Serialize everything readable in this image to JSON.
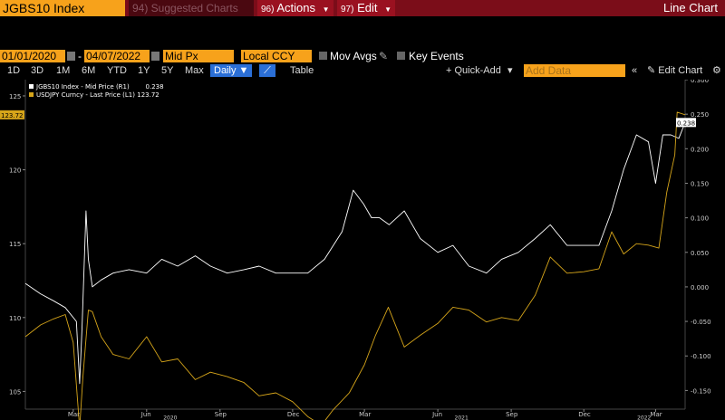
{
  "toolbar": {
    "ticker": "JGBS10 Index",
    "suggested": "94) Suggested Charts",
    "actions_num": "96)",
    "actions": "Actions",
    "edit_num": "97)",
    "edit": "Edit",
    "title": "Line Chart"
  },
  "range": {
    "start": "01/01/2020",
    "end": "04/07/2022",
    "field": "Mid Px",
    "currency": "Local CCY",
    "mov_avgs": "Mov Avgs",
    "key_events": "Key Events"
  },
  "periods": [
    "1D",
    "3D",
    "1M",
    "6M",
    "YTD",
    "1Y",
    "5Y",
    "Max"
  ],
  "controls": {
    "frequency": "Daily",
    "table": "Table",
    "quick_add": "+ Quick-Add",
    "add_data_placeholder": "Add Data",
    "edit_chart": "Edit Chart"
  },
  "colors": {
    "jgb": "#ffffff",
    "usdjpy": "#d6a51a",
    "orange": "#f7a21b",
    "header_red": "#7b0d19"
  },
  "chart_data": {
    "type": "line",
    "legend": [
      {
        "label": "JGBS10 Index - Mid Price (R1)",
        "value": "0.238"
      },
      {
        "label": "USDJPY Curncy - Last Price (L1)",
        "value": "123.72"
      }
    ],
    "last_values": {
      "left": "123.72",
      "right": "0.238"
    },
    "left_axis": {
      "ticks": [
        105,
        110,
        115,
        120,
        125
      ],
      "range": [
        103.8,
        126.1
      ]
    },
    "right_axis": {
      "ticks": [
        -0.15,
        -0.1,
        -0.05,
        0.0,
        0.05,
        0.1,
        0.15,
        0.2,
        0.25,
        0.3
      ],
      "tick_labels": [
        "-0.150",
        "-0.100",
        "-0.050",
        "0.000",
        "0.050",
        "0.100",
        "0.150",
        "0.200",
        "0.250",
        "0.300"
      ],
      "range": [
        -0.177,
        0.3
      ]
    },
    "x_ticks": [
      "Mar",
      "Jun",
      "Sep",
      "Dec",
      "Mar",
      "Jun",
      "Sep",
      "Dec",
      "Mar"
    ],
    "year_labels": [
      "2020",
      "2021",
      "2022"
    ],
    "x_range": [
      "2020-01-01",
      "2022-04-07"
    ],
    "series": [
      {
        "name": "JGBS10 Index - Mid Price (R1)",
        "axis": "right",
        "x": [
          "2020-01-01",
          "2020-01-20",
          "2020-02-05",
          "2020-02-20",
          "2020-03-05",
          "2020-03-09",
          "2020-03-12",
          "2020-03-17",
          "2020-03-20",
          "2020-03-25",
          "2020-04-05",
          "2020-04-20",
          "2020-05-10",
          "2020-06-01",
          "2020-06-20",
          "2020-07-10",
          "2020-08-01",
          "2020-08-20",
          "2020-09-10",
          "2020-10-01",
          "2020-10-20",
          "2020-11-10",
          "2020-12-01",
          "2020-12-20",
          "2021-01-10",
          "2021-02-01",
          "2021-02-15",
          "2021-02-28",
          "2021-03-10",
          "2021-03-20",
          "2021-04-01",
          "2021-04-20",
          "2021-05-10",
          "2021-06-01",
          "2021-06-20",
          "2021-07-10",
          "2021-08-01",
          "2021-08-20",
          "2021-09-10",
          "2021-10-01",
          "2021-10-20",
          "2021-11-10",
          "2021-12-01",
          "2021-12-20",
          "2022-01-05",
          "2022-01-20",
          "2022-02-05",
          "2022-02-20",
          "2022-03-01",
          "2022-03-10",
          "2022-03-20",
          "2022-03-30",
          "2022-04-07"
        ],
        "y": [
          0.005,
          -0.01,
          -0.02,
          -0.03,
          -0.05,
          -0.14,
          -0.06,
          0.11,
          0.04,
          0.0,
          0.01,
          0.02,
          0.025,
          0.02,
          0.04,
          0.03,
          0.045,
          0.03,
          0.02,
          0.025,
          0.03,
          0.02,
          0.02,
          0.02,
          0.04,
          0.08,
          0.14,
          0.12,
          0.1,
          0.1,
          0.09,
          0.11,
          0.07,
          0.05,
          0.06,
          0.03,
          0.02,
          0.04,
          0.05,
          0.07,
          0.09,
          0.06,
          0.06,
          0.06,
          0.11,
          0.17,
          0.22,
          0.21,
          0.15,
          0.22,
          0.22,
          0.215,
          0.238
        ]
      },
      {
        "name": "USDJPY Curncy - Last Price (L1)",
        "axis": "left",
        "x": [
          "2020-01-01",
          "2020-01-20",
          "2020-02-05",
          "2020-02-20",
          "2020-03-01",
          "2020-03-09",
          "2020-03-13",
          "2020-03-20",
          "2020-03-25",
          "2020-04-05",
          "2020-04-20",
          "2020-05-10",
          "2020-06-01",
          "2020-06-20",
          "2020-07-10",
          "2020-08-01",
          "2020-08-20",
          "2020-09-10",
          "2020-10-01",
          "2020-10-20",
          "2020-11-10",
          "2020-12-01",
          "2020-12-20",
          "2021-01-06",
          "2021-01-20",
          "2021-02-10",
          "2021-03-01",
          "2021-03-15",
          "2021-03-31",
          "2021-04-20",
          "2021-05-10",
          "2021-06-01",
          "2021-06-20",
          "2021-07-10",
          "2021-08-01",
          "2021-08-20",
          "2021-09-10",
          "2021-10-01",
          "2021-10-20",
          "2021-11-10",
          "2021-12-01",
          "2021-12-20",
          "2022-01-05",
          "2022-01-20",
          "2022-02-05",
          "2022-02-20",
          "2022-03-05",
          "2022-03-15",
          "2022-03-25",
          "2022-03-28",
          "2022-04-07"
        ],
        "y": [
          108.7,
          109.5,
          109.9,
          110.2,
          108.3,
          102.5,
          105.9,
          110.5,
          110.4,
          108.7,
          107.5,
          107.2,
          108.7,
          107.0,
          107.2,
          105.8,
          106.3,
          106.0,
          105.6,
          104.7,
          104.9,
          104.3,
          103.3,
          102.7,
          103.7,
          104.9,
          106.8,
          108.8,
          110.7,
          108.0,
          108.8,
          109.6,
          110.7,
          110.5,
          109.7,
          110.0,
          109.8,
          111.5,
          114.1,
          113.0,
          113.1,
          113.3,
          115.8,
          114.3,
          115.0,
          114.9,
          114.7,
          118.5,
          121.0,
          123.9,
          123.72
        ]
      }
    ]
  }
}
